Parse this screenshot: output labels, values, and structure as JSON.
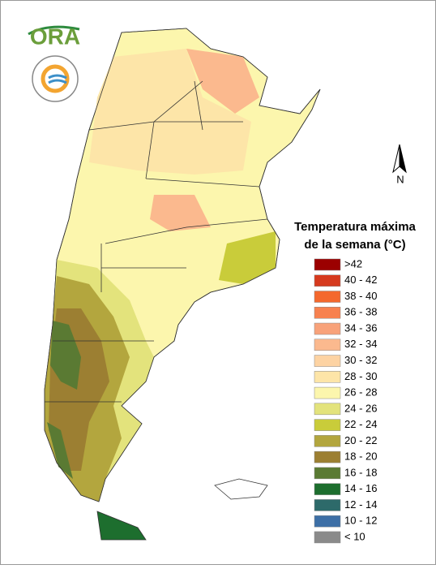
{
  "logo": "ORA",
  "north": "N",
  "title": [
    "Temperatura máxima",
    "de la semana (°C)"
  ],
  "legend": [
    {
      "label": ">42",
      "color": "#9b0000"
    },
    {
      "label": "40 - 42",
      "color": "#d63a1e"
    },
    {
      "label": "38 - 40",
      "color": "#f4682d"
    },
    {
      "label": "36 - 38",
      "color": "#f7814f"
    },
    {
      "label": "34 - 36",
      "color": "#f8a27a"
    },
    {
      "label": "32 - 34",
      "color": "#fbb98e"
    },
    {
      "label": "30 - 32",
      "color": "#fdd3a3"
    },
    {
      "label": "28 - 30",
      "color": "#fde5a8"
    },
    {
      "label": "26 - 28",
      "color": "#fcf6ad"
    },
    {
      "label": "24 - 26",
      "color": "#e3e37c"
    },
    {
      "label": "22 - 24",
      "color": "#c9cc3a"
    },
    {
      "label": "20 - 22",
      "color": "#b3a63e"
    },
    {
      "label": "18 - 20",
      "color": "#9c7f32"
    },
    {
      "label": "16 - 18",
      "color": "#5a7a33"
    },
    {
      "label": "14 - 16",
      "color": "#1d6e2e"
    },
    {
      "label": "12 - 14",
      "color": "#2d6a6a"
    },
    {
      "label": "10 - 12",
      "color": "#3d6fa6"
    },
    {
      "label": "< 10",
      "color": "#8a8a8a"
    }
  ]
}
